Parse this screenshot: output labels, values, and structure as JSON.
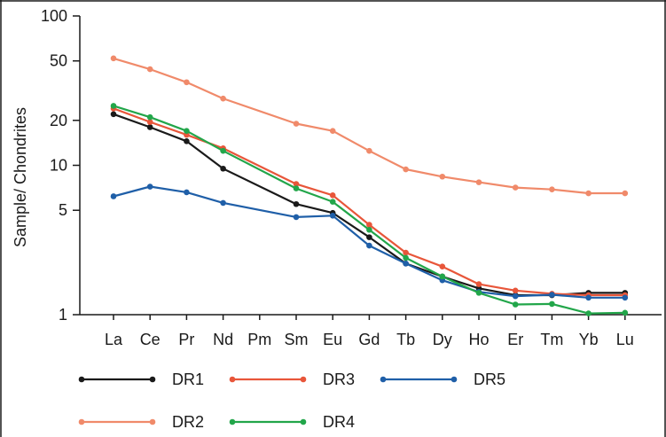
{
  "chart_data": {
    "type": "line",
    "ylabel": "Sample/ Chondrites",
    "xlabel": "",
    "y_scale": "log",
    "ylim": [
      1,
      100
    ],
    "y_ticks": [
      "1",
      "5",
      "10",
      "20",
      "50",
      "100"
    ],
    "y_tick_values": [
      1,
      5,
      10,
      20,
      50,
      100
    ],
    "categories": [
      "La",
      "Ce",
      "Pr",
      "Nd",
      "Pm",
      "Sm",
      "Eu",
      "Gd",
      "Tb",
      "Dy",
      "Ho",
      "Er",
      "Tm",
      "Yb",
      "Lu"
    ],
    "grid": false,
    "legend_position": "bottom",
    "series": [
      {
        "name": "DR1",
        "color": "#1a1a1a",
        "values": [
          22,
          18,
          14.5,
          9.5,
          null,
          5.5,
          4.8,
          3.3,
          2.2,
          1.8,
          1.5,
          1.35,
          1.35,
          1.4,
          1.4
        ]
      },
      {
        "name": "DR3",
        "color": "#e8563a",
        "values": [
          24,
          19.5,
          16,
          13,
          null,
          7.5,
          6.3,
          4,
          2.6,
          2.1,
          1.6,
          1.45,
          1.38,
          1.35,
          1.35
        ]
      },
      {
        "name": "DR5",
        "color": "#1f5fa8",
        "values": [
          6.2,
          7.2,
          6.6,
          5.6,
          null,
          4.5,
          4.6,
          2.9,
          2.2,
          1.7,
          1.42,
          1.33,
          1.36,
          1.3,
          1.3
        ]
      },
      {
        "name": "DR2",
        "color": "#f08a6a",
        "values": [
          52,
          44,
          36,
          28,
          null,
          19,
          17,
          12.5,
          9.4,
          8.4,
          7.7,
          7.1,
          6.9,
          6.5,
          6.5
        ]
      },
      {
        "name": "DR4",
        "color": "#22a64a",
        "values": [
          25,
          21,
          17,
          12.5,
          null,
          7,
          5.7,
          3.7,
          2.4,
          1.8,
          1.4,
          1.17,
          1.18,
          1.02,
          1.03
        ]
      }
    ]
  },
  "legend": {
    "row1": [
      "DR1",
      "DR3",
      "DR5"
    ],
    "row2": [
      "DR2",
      "DR4"
    ]
  }
}
